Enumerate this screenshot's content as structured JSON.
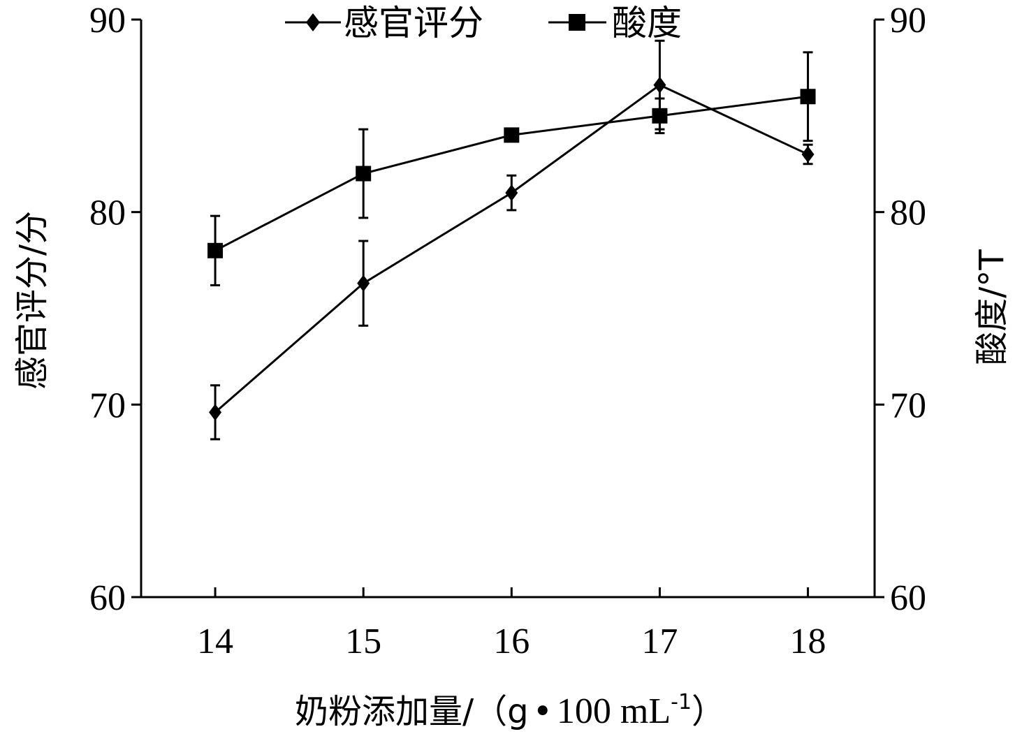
{
  "chart_data": {
    "type": "line",
    "x": [
      14,
      15,
      16,
      17,
      18
    ],
    "xlabel_main": "奶粉添加量/（g",
    "xlabel_unit": "100 mL",
    "xlabel_sup": "-1",
    "xlabel_close": "）",
    "ylabel_left": "感官评分/分",
    "ylabel_right": "酸度/°T",
    "ylim_left": [
      60,
      90
    ],
    "ylim_right": [
      60,
      90
    ],
    "yticks": [
      "60",
      "70",
      "80",
      "90"
    ],
    "xticks": [
      "14",
      "15",
      "16",
      "17",
      "18"
    ],
    "legend_position": "top-center",
    "series": [
      {
        "name": "感官评分",
        "marker": "diamond",
        "axis": "left",
        "values": [
          69.6,
          76.3,
          81.0,
          86.6,
          83.0
        ],
        "errors": [
          1.4,
          2.2,
          0.9,
          2.3,
          0.5
        ]
      },
      {
        "name": "酸度",
        "marker": "square",
        "axis": "right",
        "values": [
          78.0,
          82.0,
          84.0,
          85.0,
          86.0
        ],
        "errors": [
          1.8,
          2.3,
          0.0,
          0.9,
          2.3
        ]
      }
    ]
  }
}
